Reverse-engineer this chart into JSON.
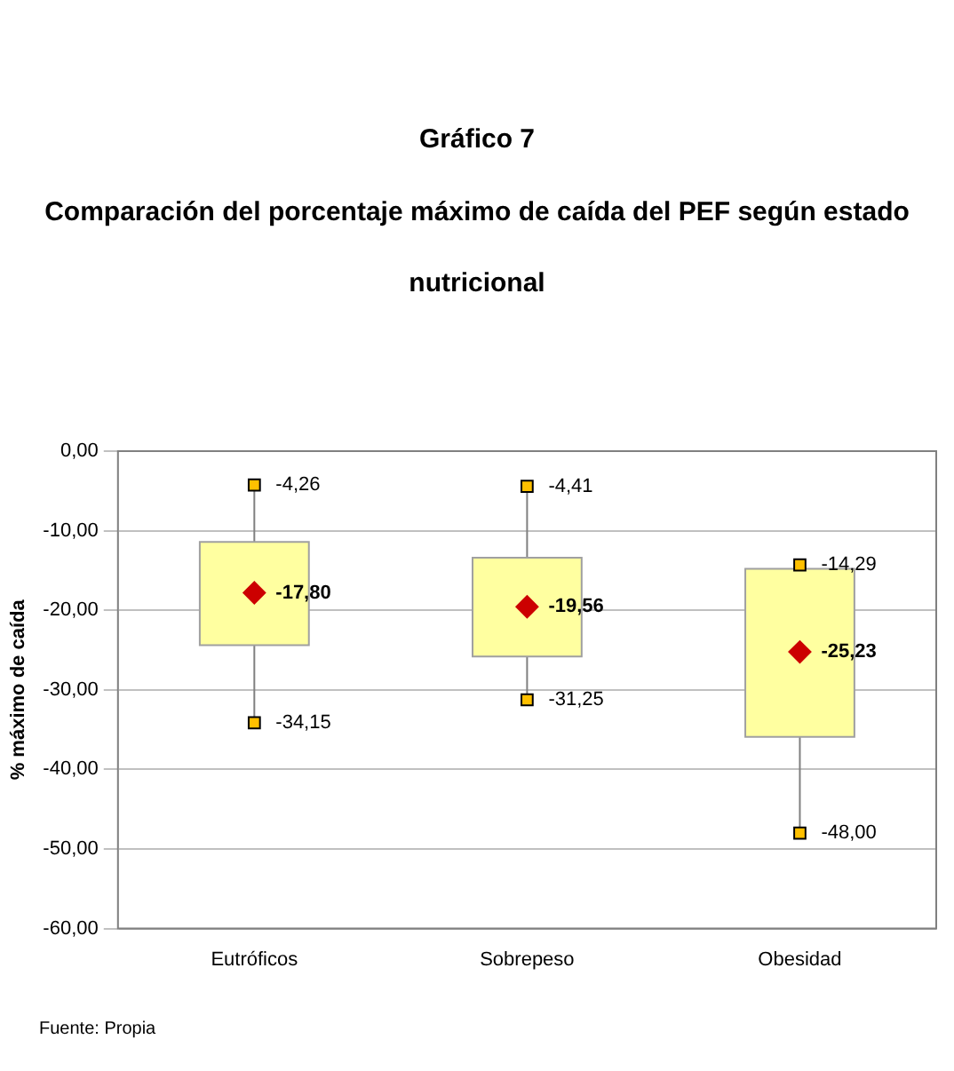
{
  "chart_data": {
    "type": "box",
    "title": "Gráfico 7",
    "subtitle": "Comparación del porcentaje máximo de caída del PEF según estado nutricional",
    "ylabel": "% máximo de caída",
    "categories": [
      "Eutróficos",
      "Sobrepeso",
      "Obesidad"
    ],
    "color": "#ffffa0",
    "boxes": [
      {
        "low": -34.15,
        "q1": -24.4,
        "q3": -11.4,
        "high": -4.26
      },
      {
        "low": -31.25,
        "q1": -25.8,
        "q3": -13.4,
        "high": -4.41
      },
      {
        "low": -48.0,
        "q1": -35.9,
        "q3": -14.8,
        "high": -14.29
      }
    ],
    "series": [
      {
        "type": "scatter",
        "marker": "square",
        "color": "#ffc000",
        "x": [
          "Eutróficos",
          "Sobrepeso",
          "Obesidad"
        ],
        "values": [
          -4.26,
          -4.41,
          -14.29
        ],
        "value_labels": [
          "-4,26",
          "-4,41",
          "-14,29"
        ]
      },
      {
        "type": "scatter",
        "marker": "square",
        "color": "#ffc000",
        "x": [
          "Eutróficos",
          "Sobrepeso",
          "Obesidad"
        ],
        "values": [
          -34.15,
          -31.25,
          -48.0
        ],
        "value_labels": [
          "-34,15",
          "-31,25",
          "-48,00"
        ]
      },
      {
        "type": "scatter",
        "marker": "diamond",
        "color": "#cc0000",
        "x": [
          "Eutróficos",
          "Sobrepeso",
          "Obesidad"
        ],
        "values": [
          -17.8,
          -19.56,
          -25.23
        ],
        "value_labels": [
          "-17,80",
          "-19,56",
          "-25,23"
        ]
      }
    ],
    "ylim": [
      -60,
      0
    ],
    "yticks": [
      {
        "value": -60,
        "label": "-60,00"
      },
      {
        "value": -50,
        "label": "-50,00"
      },
      {
        "value": -40,
        "label": "-40,00"
      },
      {
        "value": -30,
        "label": "-30,00"
      },
      {
        "value": -20,
        "label": "-20,00"
      },
      {
        "value": -10,
        "label": "-10,00"
      },
      {
        "value": 0,
        "label": "0,00"
      }
    ],
    "grid": "y",
    "annotations": [
      "Fuente: Propia"
    ]
  }
}
